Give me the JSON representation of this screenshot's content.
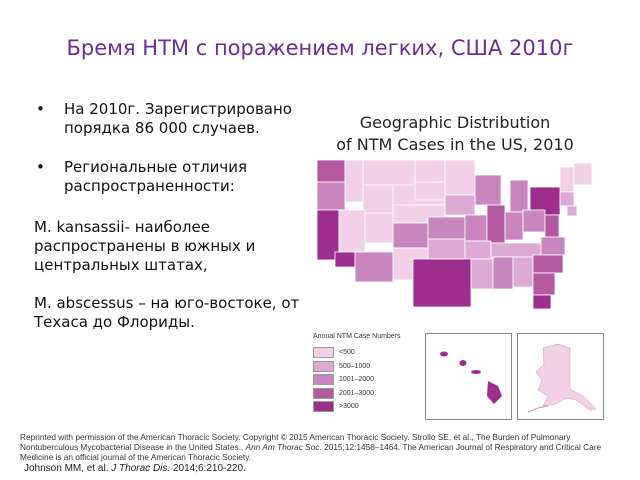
{
  "slide": {
    "title": "Бремя НТМ с поражением легких, США 2010г",
    "bullets": [
      "На 2010г. Зарегистрировано порядка 86 000 случаев.",
      "Региональные отличия распространенности:"
    ],
    "paragraphs": [
      "M. kansassii- наиболее распространены в южных и центральных штатах,",
      "M. abscessus – на юго-востоке, от Техаса до Флориды."
    ]
  },
  "figure": {
    "title_line1": "Geographic Distribution",
    "title_line2": "of NTM Cases in the US, 2010",
    "legend_title": "Annual NTM Case Numbers",
    "legend": [
      {
        "label": "<500",
        "color": "#f1d0e8"
      },
      {
        "label": "500–1000",
        "color": "#dcaad2"
      },
      {
        "label": "1001–2000",
        "color": "#c985be"
      },
      {
        "label": "2001–3000",
        "color": "#b4589f"
      },
      {
        "label": ">3000",
        "color": "#9d2e8d"
      }
    ]
  },
  "references": {
    "reprint": "Reprinted with permission of the American Thoracic Society. Copyright © 2015 American Thoracic Society. Strollo SE, et al., The Burden of Pulmonary Nontuberculous Mycobacterial Disease in the United States.,",
    "journal": "Ann Am Thorac Soc.",
    "reprint_tail": "2015;12:1458–1464. The American Journal of Respiratory and Critical Care Medicine is an official journal of the American Thoracic Society.",
    "johnson_prefix": "Johnson MM, et al.",
    "johnson_journal": "J Thorac Dis.",
    "johnson_suffix": "2014;6:210-220."
  }
}
